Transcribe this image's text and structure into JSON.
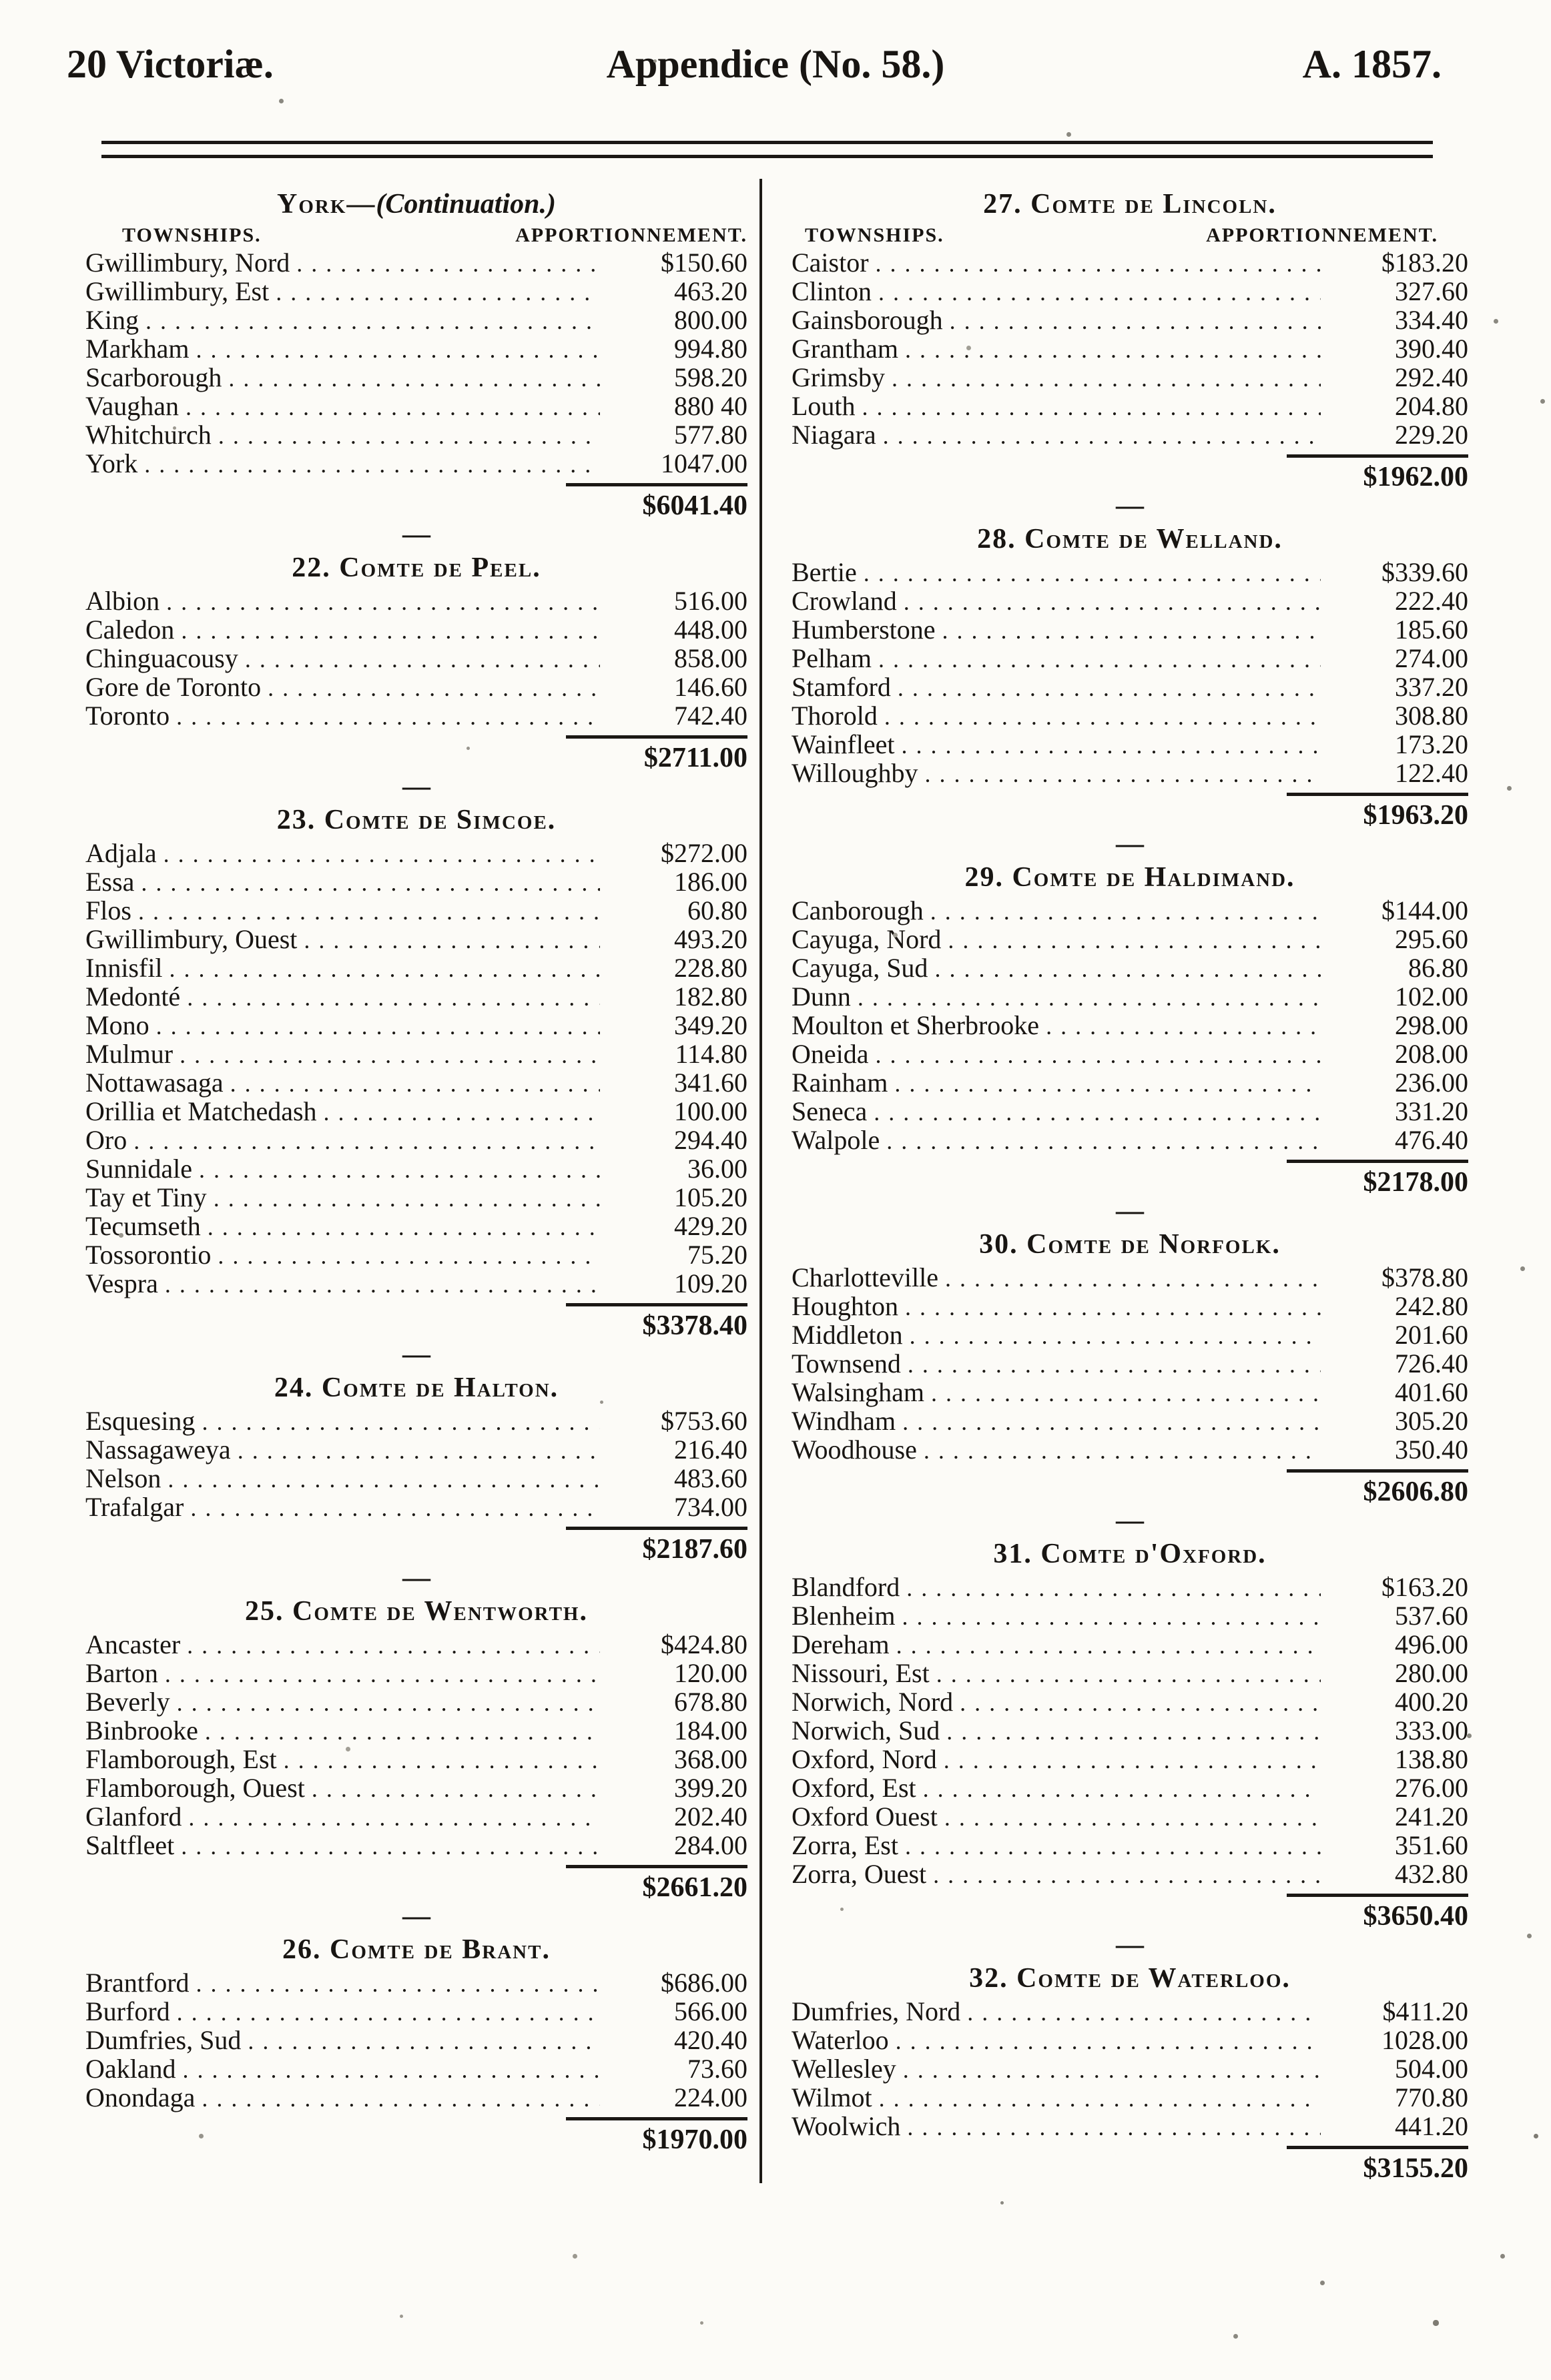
{
  "page_header": {
    "left": "20 Victoriæ.",
    "center": "Appendice (No. 58.)",
    "right": "A. 1857."
  },
  "column_headers": {
    "townships": "TOWNSHIPS.",
    "apportionment": "APPORTIONNEMENT."
  },
  "glyphs": {
    "section_dash": "—"
  },
  "left_column": {
    "sections": [
      {
        "title_main": "York—",
        "title_note": "(Continuation.)",
        "show_col_headers": true,
        "rows": [
          {
            "name": "Gwillimbury, Nord",
            "amount": "$150.60"
          },
          {
            "name": "Gwillimbury, Est",
            "amount": "463.20"
          },
          {
            "name": "King",
            "amount": "800.00"
          },
          {
            "name": "Markham",
            "amount": "994.80"
          },
          {
            "name": "Scarborough",
            "amount": "598.20"
          },
          {
            "name": "Vaughan",
            "amount": "880 40"
          },
          {
            "name": "Whitchurch",
            "amount": "577.80"
          },
          {
            "name": "York",
            "amount": "1047.00"
          }
        ],
        "total": "$6041.40"
      },
      {
        "title": "22. Comte de Peel.",
        "rows": [
          {
            "name": "Albion",
            "amount": "516.00"
          },
          {
            "name": "Caledon",
            "amount": "448.00"
          },
          {
            "name": "Chinguacousy",
            "amount": "858.00"
          },
          {
            "name": "Gore de Toronto",
            "amount": "146.60"
          },
          {
            "name": "Toronto",
            "amount": "742.40"
          }
        ],
        "total": "$2711.00"
      },
      {
        "title": "23. Comte de Simcoe.",
        "rows": [
          {
            "name": "Adjala",
            "amount": "$272.00"
          },
          {
            "name": "Essa",
            "amount": "186.00"
          },
          {
            "name": "Flos",
            "amount": "60.80"
          },
          {
            "name": "Gwillimbury, Ouest",
            "amount": "493.20"
          },
          {
            "name": "Innisfil",
            "amount": "228.80"
          },
          {
            "name": "Medonté",
            "amount": "182.80"
          },
          {
            "name": "Mono",
            "amount": "349.20"
          },
          {
            "name": "Mulmur",
            "amount": "114.80"
          },
          {
            "name": "Nottawasaga",
            "amount": "341.60"
          },
          {
            "name": "Orillia et Matchedash",
            "amount": "100.00"
          },
          {
            "name": "Oro",
            "amount": "294.40"
          },
          {
            "name": "Sunnidale",
            "amount": "36.00"
          },
          {
            "name": "Tay et Tiny",
            "amount": "105.20"
          },
          {
            "name": "Tecumseth",
            "amount": "429.20"
          },
          {
            "name": "Tossorontio",
            "amount": "75.20"
          },
          {
            "name": "Vespra",
            "amount": "109.20"
          }
        ],
        "total": "$3378.40"
      },
      {
        "title": "24. Comte de Halton.",
        "rows": [
          {
            "name": "Esquesing",
            "amount": "$753.60"
          },
          {
            "name": "Nassagaweya",
            "amount": "216.40"
          },
          {
            "name": "Nelson",
            "amount": "483.60"
          },
          {
            "name": "Trafalgar",
            "amount": "734.00"
          }
        ],
        "total": "$2187.60"
      },
      {
        "title": "25. Comte de Wentworth.",
        "rows": [
          {
            "name": "Ancaster",
            "amount": "$424.80"
          },
          {
            "name": "Barton",
            "amount": "120.00"
          },
          {
            "name": "Beverly",
            "amount": "678.80"
          },
          {
            "name": "Binbrooke",
            "amount": "184.00"
          },
          {
            "name": "Flamborough, Est",
            "amount": "368.00"
          },
          {
            "name": "Flamborough, Ouest",
            "amount": "399.20"
          },
          {
            "name": "Glanford",
            "amount": "202.40"
          },
          {
            "name": "Saltfleet",
            "amount": "284.00"
          }
        ],
        "total": "$2661.20"
      },
      {
        "title": "26. Comte de Brant.",
        "rows": [
          {
            "name": "Brantford",
            "amount": "$686.00"
          },
          {
            "name": "Burford",
            "amount": "566.00"
          },
          {
            "name": "Dumfries, Sud",
            "amount": "420.40"
          },
          {
            "name": "Oakland",
            "amount": "73.60"
          },
          {
            "name": "Onondaga",
            "amount": "224.00"
          }
        ],
        "total": "$1970.00"
      }
    ]
  },
  "right_column": {
    "sections": [
      {
        "title": "27. Comte de Lincoln.",
        "show_col_headers": true,
        "rows": [
          {
            "name": "Caistor",
            "amount": "$183.20"
          },
          {
            "name": "Clinton",
            "amount": "327.60"
          },
          {
            "name": "Gainsborough",
            "amount": "334.40"
          },
          {
            "name": "Grantham",
            "amount": "390.40"
          },
          {
            "name": "Grimsby",
            "amount": "292.40"
          },
          {
            "name": "Louth",
            "amount": "204.80"
          },
          {
            "name": "Niagara",
            "amount": "229.20"
          }
        ],
        "total": "$1962.00"
      },
      {
        "title": "28. Comte de Welland.",
        "rows": [
          {
            "name": "Bertie",
            "amount": "$339.60"
          },
          {
            "name": "Crowland",
            "amount": "222.40"
          },
          {
            "name": "Humberstone",
            "amount": "185.60"
          },
          {
            "name": "Pelham",
            "amount": "274.00"
          },
          {
            "name": "Stamford",
            "amount": "337.20"
          },
          {
            "name": "Thorold",
            "amount": "308.80"
          },
          {
            "name": "Wainfleet",
            "amount": "173.20"
          },
          {
            "name": "Willoughby",
            "amount": "122.40"
          }
        ],
        "total": "$1963.20"
      },
      {
        "title": "29. Comte de Haldimand.",
        "rows": [
          {
            "name": "Canborough",
            "amount": "$144.00"
          },
          {
            "name": "Cayuga, Nord",
            "amount": "295.60"
          },
          {
            "name": "Cayuga, Sud",
            "amount": "86.80"
          },
          {
            "name": "Dunn",
            "amount": "102.00"
          },
          {
            "name": "Moulton et Sherbrooke",
            "amount": "298.00"
          },
          {
            "name": "Oneida",
            "amount": "208.00"
          },
          {
            "name": "Rainham",
            "amount": "236.00"
          },
          {
            "name": "Seneca",
            "amount": "331.20"
          },
          {
            "name": "Walpole",
            "amount": "476.40"
          }
        ],
        "total": "$2178.00"
      },
      {
        "title": "30. Comte de Norfolk.",
        "rows": [
          {
            "name": "Charlotteville",
            "amount": "$378.80"
          },
          {
            "name": "Houghton",
            "amount": "242.80"
          },
          {
            "name": "Middleton",
            "amount": "201.60"
          },
          {
            "name": "Townsend",
            "amount": "726.40"
          },
          {
            "name": "Walsingham",
            "amount": "401.60"
          },
          {
            "name": "Windham",
            "amount": "305.20"
          },
          {
            "name": "Woodhouse",
            "amount": "350.40"
          }
        ],
        "total": "$2606.80"
      },
      {
        "title": "31. Comte d'Oxford.",
        "rows": [
          {
            "name": "Blandford",
            "amount": "$163.20"
          },
          {
            "name": "Blenheim",
            "amount": "537.60"
          },
          {
            "name": "Dereham",
            "amount": "496.00"
          },
          {
            "name": "Nissouri, Est",
            "amount": "280.00"
          },
          {
            "name": "Norwich, Nord",
            "amount": "400.20"
          },
          {
            "name": "Norwich, Sud",
            "amount": "333.00"
          },
          {
            "name": "Oxford, Nord",
            "amount": "138.80"
          },
          {
            "name": "Oxford, Est",
            "amount": "276.00"
          },
          {
            "name": "Oxford Ouest",
            "amount": "241.20"
          },
          {
            "name": "Zorra, Est",
            "amount": "351.60"
          },
          {
            "name": "Zorra, Ouest",
            "amount": "432.80"
          }
        ],
        "total": "$3650.40"
      },
      {
        "title": "32. Comte de Waterloo.",
        "rows": [
          {
            "name": "Dumfries, Nord",
            "amount": "$411.20"
          },
          {
            "name": "Waterloo",
            "amount": "1028.00"
          },
          {
            "name": "Wellesley",
            "amount": "504.00"
          },
          {
            "name": "Wilmot",
            "amount": "770.80"
          },
          {
            "name": "Woolwich",
            "amount": "441.20"
          }
        ],
        "total": "$3155.20"
      }
    ]
  }
}
